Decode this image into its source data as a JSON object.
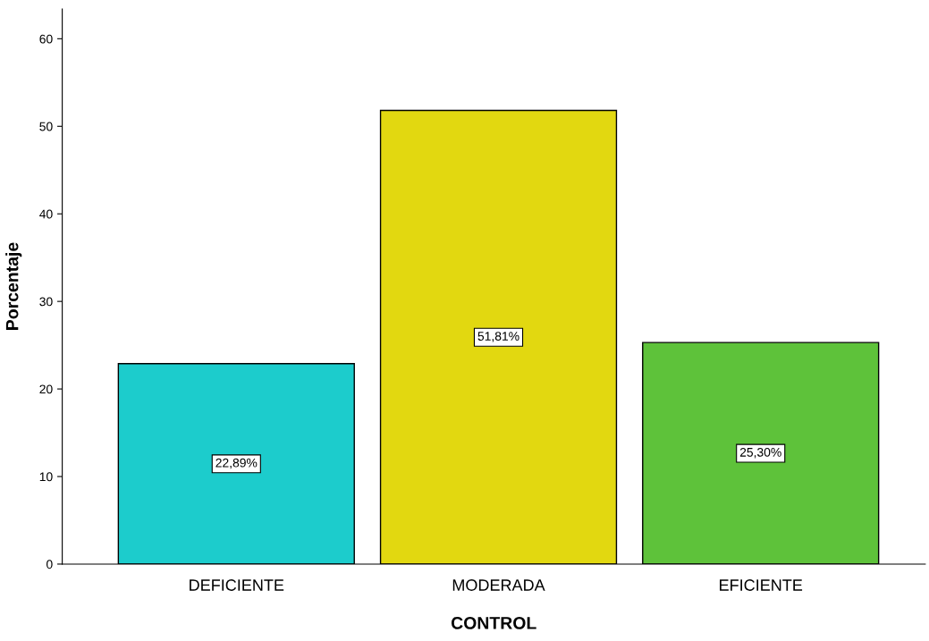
{
  "chart_data": {
    "type": "bar",
    "xlabel": "CONTROL",
    "ylabel": "Porcentaje",
    "categories": [
      "DEFICIENTE",
      "MODERADA",
      "EFICIENTE"
    ],
    "values": [
      22.89,
      51.81,
      25.3
    ],
    "colors": [
      "#1ccccc",
      "#e2d810",
      "#5ec23a"
    ],
    "value_labels": [
      "22,89%",
      "51,81%",
      "25,30%"
    ],
    "ylim": [
      0,
      63.4
    ],
    "yticks": [
      0,
      10,
      20,
      30,
      40,
      50,
      60
    ],
    "grid": false
  }
}
